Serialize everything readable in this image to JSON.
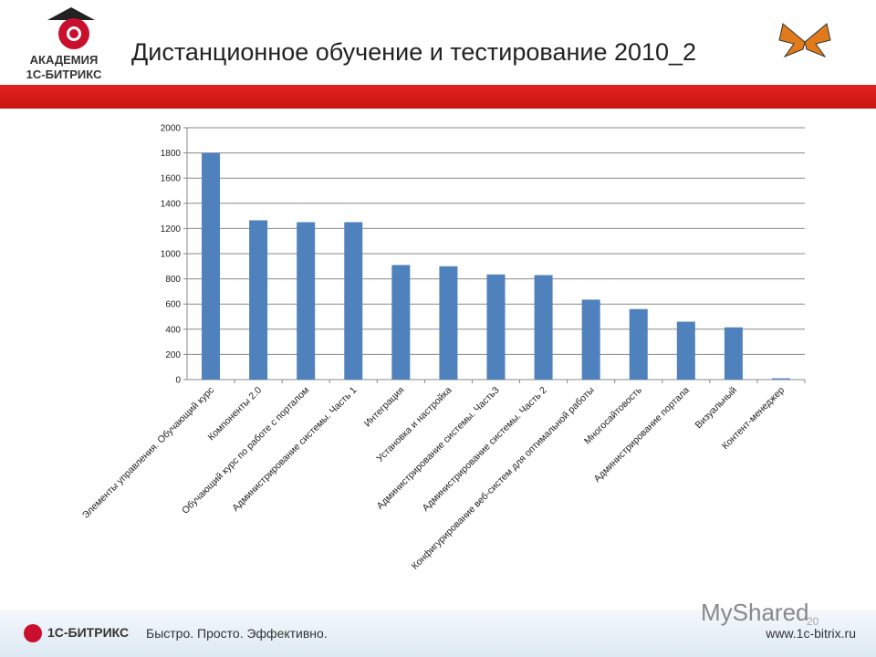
{
  "header": {
    "title": "Дистанционное обучение и тестирование 2010_2",
    "logo_line1": "АКАДЕМИЯ",
    "logo_line2": "1С-БИТРИКС"
  },
  "footer": {
    "brand": "1С-БИТРИКС",
    "slogan": "Быстро. Просто. Эффективно.",
    "url": "www.1c-bitrix.ru",
    "watermark": "MyShared",
    "page_number": "20"
  },
  "colors": {
    "bar": "#4f81bd",
    "accent": "#d7191a"
  },
  "chart_data": {
    "type": "bar",
    "categories": [
      "Элементы управления. Обучающий курс",
      "Компоненты 2.0",
      "Обучающий курс по работе с порталом",
      "Администрирование системы. Часть 1",
      "Интеграция",
      "Установка и настройка",
      "Администрирование системы. Часть3",
      "Администрирование системы. Часть 2",
      "Конфигурирование веб-систем для оптимальной работы",
      "Многосайтовость",
      "Администрирование портала",
      "Визуальный",
      "Контент-менеджер"
    ],
    "values": [
      1800,
      1265,
      1250,
      1250,
      910,
      900,
      835,
      830,
      635,
      560,
      460,
      415,
      10
    ],
    "ylim": [
      0,
      2000
    ],
    "yticks": [
      "0",
      "200",
      "400",
      "600",
      "800",
      "1000",
      "1200",
      "1400",
      "1600",
      "1800",
      "2000"
    ],
    "grid": true,
    "legend": "none"
  }
}
